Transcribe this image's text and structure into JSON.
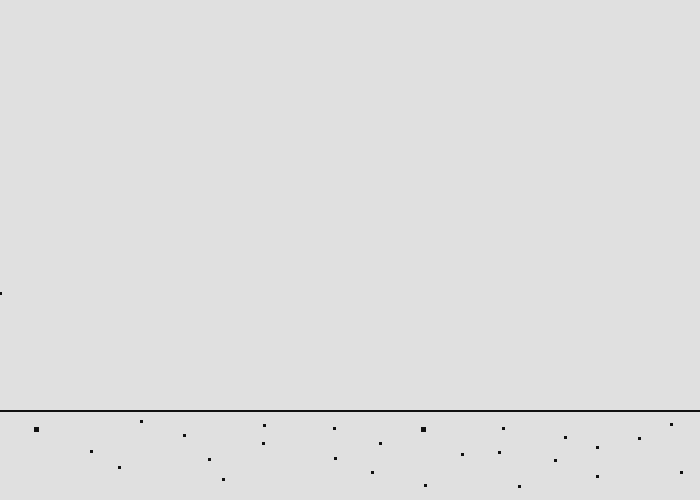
{
  "scene": {
    "background_color": "#e0e0e0",
    "ground_color": "#111111",
    "elements": [
      "horizon-line",
      "ground-pebbles",
      "edge-mark"
    ]
  }
}
